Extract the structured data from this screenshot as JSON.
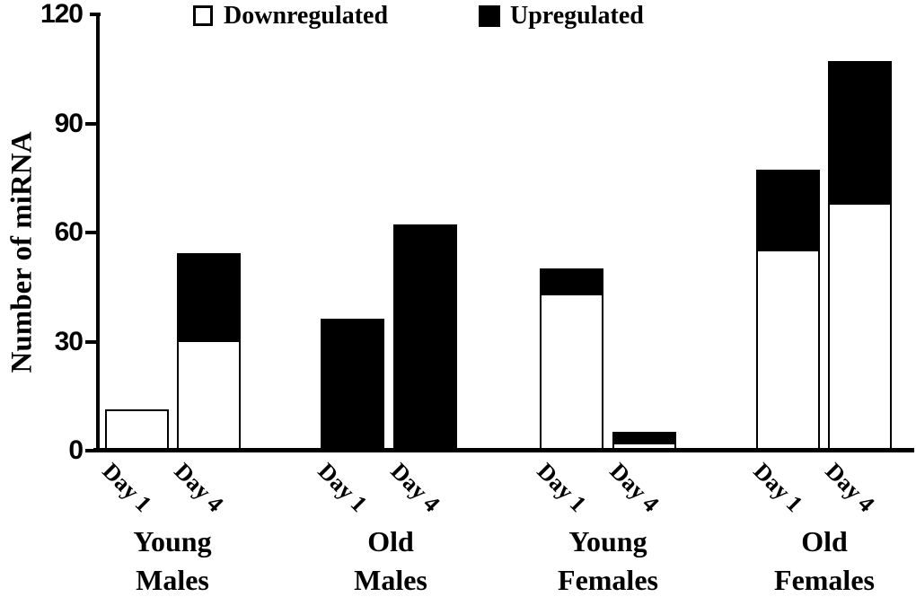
{
  "chart_data": {
    "type": "bar",
    "stacked": true,
    "title": "",
    "xlabel": "",
    "ylabel": "Number of miRNA",
    "ylim": [
      0,
      120
    ],
    "yticks": [
      0,
      30,
      60,
      90,
      120
    ],
    "grid": false,
    "legend_position": "top",
    "legend": [
      {
        "label": "Downregulated",
        "fill": "#ffffff"
      },
      {
        "label": "Upregulated",
        "fill": "#000000"
      }
    ],
    "series_names": [
      "Downregulated",
      "Upregulated"
    ],
    "colors": {
      "downregulated": "#ffffff",
      "upregulated": "#000000",
      "axis": "#000000",
      "background": "#ffffff"
    },
    "groups": [
      {
        "label_lines": [
          "Young",
          "Males"
        ],
        "bars": [
          {
            "x_label": "Day 1",
            "downregulated": 11,
            "upregulated": 0,
            "total": 11
          },
          {
            "x_label": "Day 4",
            "downregulated": 30,
            "upregulated": 24,
            "total": 54
          }
        ]
      },
      {
        "label_lines": [
          "Old",
          "Males"
        ],
        "bars": [
          {
            "x_label": "Day 1",
            "downregulated": 0,
            "upregulated": 36,
            "total": 36
          },
          {
            "x_label": "Day 4",
            "downregulated": 0,
            "upregulated": 62,
            "total": 62
          }
        ]
      },
      {
        "label_lines": [
          "Young",
          "Females"
        ],
        "bars": [
          {
            "x_label": "Day 1",
            "downregulated": 43,
            "upregulated": 7,
            "total": 50
          },
          {
            "x_label": "Day 4",
            "downregulated": 2,
            "upregulated": 3,
            "total": 5
          }
        ]
      },
      {
        "label_lines": [
          "Old",
          "Females"
        ],
        "bars": [
          {
            "x_label": "Day 1",
            "downregulated": 55,
            "upregulated": 22,
            "total": 77
          },
          {
            "x_label": "Day 4",
            "downregulated": 68,
            "upregulated": 39,
            "total": 107
          }
        ]
      }
    ]
  }
}
